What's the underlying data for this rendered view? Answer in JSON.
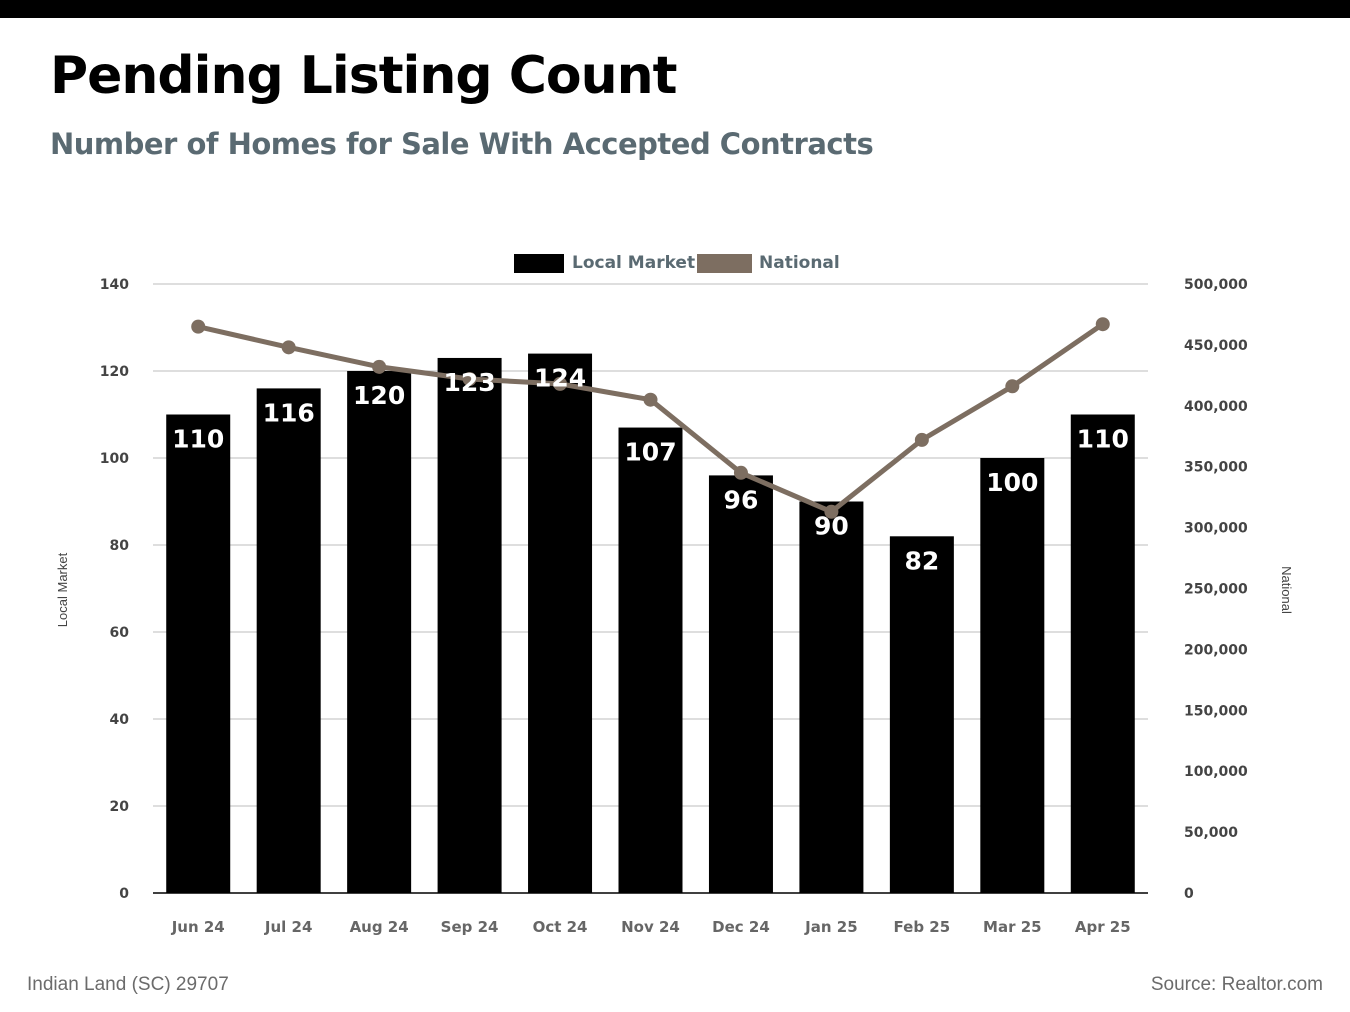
{
  "header": {
    "title": "Pending Listing Count",
    "subtitle": "Number of Homes for Sale With Accepted Contracts"
  },
  "footer": {
    "location": "Indian Land (SC) 29707",
    "source": "Source: Realtor.com"
  },
  "colors": {
    "bar": "#000000",
    "line": "#7d6e61",
    "grid": "#bdbdbd",
    "axis": "#000000"
  },
  "chart_data": {
    "type": "bar",
    "categories": [
      "Jun 24",
      "Jul 24",
      "Aug 24",
      "Sep 24",
      "Oct 24",
      "Nov 24",
      "Dec 24",
      "Jan 25",
      "Feb 25",
      "Mar 25",
      "Apr 25"
    ],
    "series": [
      {
        "name": "Local Market",
        "type": "bar",
        "axis": "left",
        "values": [
          110,
          116,
          120,
          123,
          124,
          107,
          96,
          90,
          82,
          100,
          110
        ],
        "data_labels": true
      },
      {
        "name": "National",
        "type": "line",
        "axis": "right",
        "values": [
          465000,
          448000,
          432000,
          422000,
          418000,
          405000,
          345000,
          313000,
          372000,
          416000,
          467000
        ]
      }
    ],
    "ylabel": "Local Market",
    "y2label": "National",
    "ylim": [
      0,
      140
    ],
    "y2lim": [
      0,
      500000
    ],
    "yticks": [
      "0",
      "20",
      "40",
      "60",
      "80",
      "100",
      "120",
      "140"
    ],
    "y2ticks": [
      "0",
      "50,000",
      "100,000",
      "150,000",
      "200,000",
      "250,000",
      "300,000",
      "350,000",
      "400,000",
      "450,000",
      "500,000"
    ],
    "grid": true,
    "legend": "top-center"
  }
}
